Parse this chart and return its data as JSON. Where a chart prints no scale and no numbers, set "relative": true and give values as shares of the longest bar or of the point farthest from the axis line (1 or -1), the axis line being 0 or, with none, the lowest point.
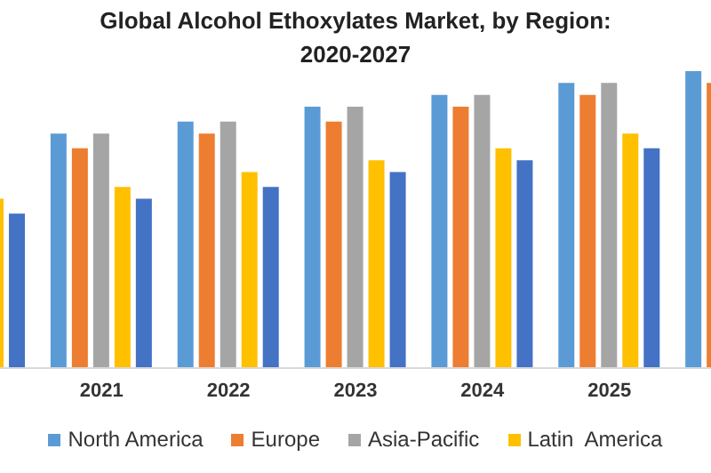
{
  "chart_data": {
    "type": "bar",
    "title": "Global Alcohol Ethoxylates Market, by Region:\n2020-2027",
    "relative": true,
    "legend": "bottom",
    "grid": false,
    "categories": [
      null,
      "2021",
      "2022",
      "2023",
      "2024",
      "2025",
      null
    ],
    "series": [
      {
        "name": "North America",
        "color": "#5b9bd5",
        "values": [
          null,
          0.79,
          0.83,
          0.88,
          0.92,
          0.96,
          1
        ]
      },
      {
        "name": "Europe",
        "color": "#ed7d31",
        "values": [
          null,
          0.74,
          0.79,
          0.83,
          0.88,
          0.92,
          0.96
        ]
      },
      {
        "name": "Asia-Pacific",
        "color": "#a5a5a5",
        "values": [
          null,
          0.79,
          0.83,
          0.88,
          0.92,
          0.96,
          null
        ]
      },
      {
        "name": "Latin  America",
        "color": "#ffc000",
        "values": [
          0.57,
          0.61,
          0.66,
          0.7,
          0.74,
          0.79,
          null
        ]
      },
      {
        "color": "#4472c4",
        "values": [
          0.52,
          0.57,
          0.61,
          0.66,
          0.7,
          0.74,
          null
        ]
      }
    ]
  }
}
